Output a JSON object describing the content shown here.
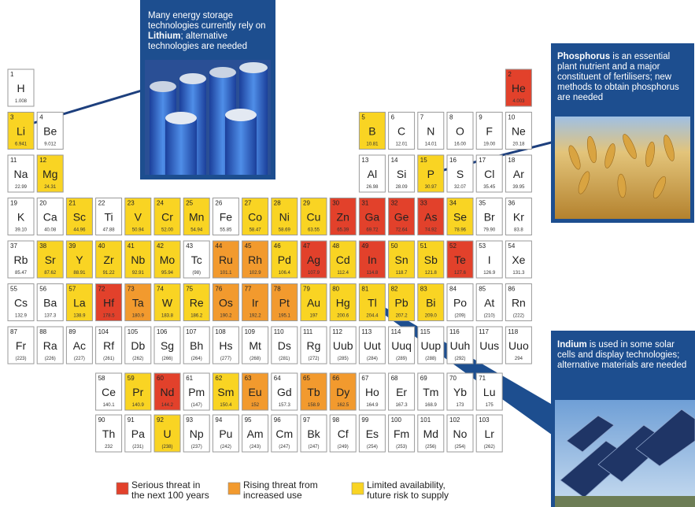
{
  "callouts": [
    {
      "parts": [
        {
          "text": "Many energy storage technologies currently rely on ",
          "bold": false
        },
        {
          "text": "Lithium",
          "bold": true
        },
        {
          "text": "; alternative technologies are needed",
          "bold": false
        }
      ]
    },
    {
      "parts": [
        {
          "text": "Phosphorus",
          "bold": true
        },
        {
          "text": " is an essential plant nutrient and a major constituent of fertilisers; new methods to obtain phosphorus are needed",
          "bold": false
        }
      ]
    },
    {
      "parts": [
        {
          "text": "Indium",
          "bold": true
        },
        {
          "text": " is used in some solar cells and display technologies; alternative materials are needed",
          "bold": false
        }
      ]
    }
  ],
  "legend": [
    {
      "lines": [
        "Serious threat in",
        "the next 100 years"
      ],
      "color": "#e2412b"
    },
    {
      "lines": [
        "Rising threat from",
        "increased use"
      ],
      "color": "#f29a2e"
    },
    {
      "lines": [
        "Limited availability,",
        "future risk to supply"
      ],
      "color": "#f9d423"
    }
  ],
  "elements": [
    {
      "number": 1,
      "symbol": "H",
      "mass": "1.008"
    },
    {
      "number": 2,
      "symbol": "He",
      "mass": "4.003",
      "color": "#e2412b"
    },
    {
      "number": 3,
      "symbol": "Li",
      "mass": "6.941",
      "color": "#f9d423"
    },
    {
      "number": 4,
      "symbol": "Be",
      "mass": "9.012"
    },
    {
      "number": 5,
      "symbol": "B",
      "mass": "10.81",
      "color": "#f9d423"
    },
    {
      "number": 6,
      "symbol": "C",
      "mass": "12.01"
    },
    {
      "number": 7,
      "symbol": "N",
      "mass": "14.01"
    },
    {
      "number": 8,
      "symbol": "O",
      "mass": "16.00"
    },
    {
      "number": 9,
      "symbol": "F",
      "mass": "19.00"
    },
    {
      "number": 10,
      "symbol": "Ne",
      "mass": "20.18"
    },
    {
      "number": 11,
      "symbol": "Na",
      "mass": "22.99"
    },
    {
      "number": 12,
      "symbol": "Mg",
      "mass": "24.31",
      "color": "#f9d423"
    },
    {
      "number": 13,
      "symbol": "Al",
      "mass": "26.98"
    },
    {
      "number": 14,
      "symbol": "Si",
      "mass": "28.09"
    },
    {
      "number": 15,
      "symbol": "P",
      "mass": "30.97",
      "color": "#f9d423"
    },
    {
      "number": 16,
      "symbol": "S",
      "mass": "32.07"
    },
    {
      "number": 17,
      "symbol": "Cl",
      "mass": "35.45"
    },
    {
      "number": 18,
      "symbol": "Ar",
      "mass": "39.95"
    },
    {
      "number": 19,
      "symbol": "K",
      "mass": "39.10"
    },
    {
      "number": 20,
      "symbol": "Ca",
      "mass": "40.08"
    },
    {
      "number": 21,
      "symbol": "Sc",
      "mass": "44.96",
      "color": "#f9d423"
    },
    {
      "number": 22,
      "symbol": "Ti",
      "mass": "47.88"
    },
    {
      "number": 23,
      "symbol": "V",
      "mass": "50.94",
      "color": "#f9d423"
    },
    {
      "number": 24,
      "symbol": "Cr",
      "mass": "52.00",
      "color": "#f9d423"
    },
    {
      "number": 25,
      "symbol": "Mn",
      "mass": "54.94",
      "color": "#f9d423"
    },
    {
      "number": 26,
      "symbol": "Fe",
      "mass": "55.85"
    },
    {
      "number": 27,
      "symbol": "Co",
      "mass": "58.47",
      "color": "#f9d423"
    },
    {
      "number": 28,
      "symbol": "Ni",
      "mass": "58.69",
      "color": "#f9d423"
    },
    {
      "number": 29,
      "symbol": "Cu",
      "mass": "63.55",
      "color": "#f9d423"
    },
    {
      "number": 30,
      "symbol": "Zn",
      "mass": "65.39",
      "color": "#e2412b"
    },
    {
      "number": 31,
      "symbol": "Ga",
      "mass": "69.72",
      "color": "#e2412b"
    },
    {
      "number": 32,
      "symbol": "Ge",
      "mass": "72.64",
      "color": "#e2412b"
    },
    {
      "number": 33,
      "symbol": "As",
      "mass": "74.92",
      "color": "#e2412b"
    },
    {
      "number": 34,
      "symbol": "Se",
      "mass": "78.96",
      "color": "#f9d423"
    },
    {
      "number": 35,
      "symbol": "Br",
      "mass": "79.90"
    },
    {
      "number": 36,
      "symbol": "Kr",
      "mass": "83.8"
    },
    {
      "number": 37,
      "symbol": "Rb",
      "mass": "85.47"
    },
    {
      "number": 38,
      "symbol": "Sr",
      "mass": "87.62",
      "color": "#f9d423"
    },
    {
      "number": 39,
      "symbol": "Y",
      "mass": "88.91",
      "color": "#f9d423"
    },
    {
      "number": 40,
      "symbol": "Zr",
      "mass": "91.22",
      "color": "#f9d423"
    },
    {
      "number": 41,
      "symbol": "Nb",
      "mass": "92.91",
      "color": "#f9d423"
    },
    {
      "number": 42,
      "symbol": "Mo",
      "mass": "95.94",
      "color": "#f9d423"
    },
    {
      "number": 43,
      "symbol": "Tc",
      "mass": "(98)"
    },
    {
      "number": 44,
      "symbol": "Ru",
      "mass": "101.1",
      "color": "#f29a2e"
    },
    {
      "number": 45,
      "symbol": "Rh",
      "mass": "102.9",
      "color": "#f29a2e"
    },
    {
      "number": 46,
      "symbol": "Pd",
      "mass": "106.4",
      "color": "#f9d423"
    },
    {
      "number": 47,
      "symbol": "Ag",
      "mass": "107.9",
      "color": "#e2412b"
    },
    {
      "number": 48,
      "symbol": "Cd",
      "mass": "112.4",
      "color": "#f9d423"
    },
    {
      "number": 49,
      "symbol": "In",
      "mass": "114.8",
      "color": "#e2412b"
    },
    {
      "number": 50,
      "symbol": "Sn",
      "mass": "118.7",
      "color": "#f9d423"
    },
    {
      "number": 51,
      "symbol": "Sb",
      "mass": "121.8",
      "color": "#f9d423"
    },
    {
      "number": 52,
      "symbol": "Te",
      "mass": "127.6",
      "color": "#e2412b"
    },
    {
      "number": 53,
      "symbol": "I",
      "mass": "126.9"
    },
    {
      "number": 54,
      "symbol": "Xe",
      "mass": "131.3"
    },
    {
      "number": 55,
      "symbol": "Cs",
      "mass": "132.9"
    },
    {
      "number": 56,
      "symbol": "Ba",
      "mass": "137.3"
    },
    {
      "number": 57,
      "symbol": "La",
      "mass": "138.9",
      "color": "#f9d423"
    },
    {
      "number": 58,
      "symbol": "Ce",
      "mass": "140.1"
    },
    {
      "number": 59,
      "symbol": "Pr",
      "mass": "140.9",
      "color": "#f9d423"
    },
    {
      "number": 60,
      "symbol": "Nd",
      "mass": "144.2",
      "color": "#e2412b"
    },
    {
      "number": 61,
      "symbol": "Pm",
      "mass": "(147)"
    },
    {
      "number": 62,
      "symbol": "Sm",
      "mass": "150.4",
      "color": "#f9d423"
    },
    {
      "number": 63,
      "symbol": "Eu",
      "mass": "152",
      "color": "#f29a2e"
    },
    {
      "number": 64,
      "symbol": "Gd",
      "mass": "157.3"
    },
    {
      "number": 65,
      "symbol": "Tb",
      "mass": "158.9",
      "color": "#f29a2e"
    },
    {
      "number": 66,
      "symbol": "Dy",
      "mass": "162.5",
      "color": "#f29a2e"
    },
    {
      "number": 67,
      "symbol": "Ho",
      "mass": "164.9"
    },
    {
      "number": 68,
      "symbol": "Er",
      "mass": "167.3"
    },
    {
      "number": 69,
      "symbol": "Tm",
      "mass": "168.9"
    },
    {
      "number": 70,
      "symbol": "Yb",
      "mass": "173"
    },
    {
      "number": 71,
      "symbol": "Lu",
      "mass": "175"
    },
    {
      "number": 72,
      "symbol": "Hf",
      "mass": "178.5",
      "color": "#e2412b"
    },
    {
      "number": 73,
      "symbol": "Ta",
      "mass": "180.9",
      "color": "#f29a2e"
    },
    {
      "number": 74,
      "symbol": "W",
      "mass": "183.8",
      "color": "#f9d423"
    },
    {
      "number": 75,
      "symbol": "Re",
      "mass": "186.2",
      "color": "#f9d423"
    },
    {
      "number": 76,
      "symbol": "Os",
      "mass": "190.2",
      "color": "#f29a2e"
    },
    {
      "number": 77,
      "symbol": "Ir",
      "mass": "192.2",
      "color": "#f29a2e"
    },
    {
      "number": 78,
      "symbol": "Pt",
      "mass": "195.1",
      "color": "#f29a2e"
    },
    {
      "number": 79,
      "symbol": "Au",
      "mass": "197",
      "color": "#f9d423"
    },
    {
      "number": 80,
      "symbol": "Hg",
      "mass": "200.6",
      "color": "#f9d423"
    },
    {
      "number": 81,
      "symbol": "Tl",
      "mass": "204.4",
      "color": "#f9d423"
    },
    {
      "number": 82,
      "symbol": "Pb",
      "mass": "207.2",
      "color": "#f9d423"
    },
    {
      "number": 83,
      "symbol": "Bi",
      "mass": "209.0",
      "color": "#f9d423"
    },
    {
      "number": 84,
      "symbol": "Po",
      "mass": "(209)"
    },
    {
      "number": 85,
      "symbol": "At",
      "mass": "(210)"
    },
    {
      "number": 86,
      "symbol": "Rn",
      "mass": "(222)"
    },
    {
      "number": 87,
      "symbol": "Fr",
      "mass": "(223)"
    },
    {
      "number": 88,
      "symbol": "Ra",
      "mass": "(226)"
    },
    {
      "number": 89,
      "symbol": "Ac",
      "mass": "(227)"
    },
    {
      "number": 90,
      "symbol": "Th",
      "mass": "232"
    },
    {
      "number": 91,
      "symbol": "Pa",
      "mass": "(231)"
    },
    {
      "number": 92,
      "symbol": "U",
      "mass": "(238)",
      "color": "#f9d423"
    },
    {
      "number": 93,
      "symbol": "Np",
      "mass": "(237)"
    },
    {
      "number": 94,
      "symbol": "Pu",
      "mass": "(242)"
    },
    {
      "number": 95,
      "symbol": "Am",
      "mass": "(243)"
    },
    {
      "number": 96,
      "symbol": "Cm",
      "mass": "(247)"
    },
    {
      "number": 97,
      "symbol": "Bk",
      "mass": "(247)"
    },
    {
      "number": 98,
      "symbol": "Cf",
      "mass": "(249)"
    },
    {
      "number": 99,
      "symbol": "Es",
      "mass": "(254)"
    },
    {
      "number": 100,
      "symbol": "Fm",
      "mass": "(253)"
    },
    {
      "number": 101,
      "symbol": "Md",
      "mass": "(256)"
    },
    {
      "number": 102,
      "symbol": "No",
      "mass": "(254)"
    },
    {
      "number": 103,
      "symbol": "Lr",
      "mass": "(262)"
    },
    {
      "number": 104,
      "symbol": "Rf",
      "mass": "(261)"
    },
    {
      "number": 105,
      "symbol": "Db",
      "mass": "(262)"
    },
    {
      "number": 106,
      "symbol": "Sg",
      "mass": "(266)"
    },
    {
      "number": 107,
      "symbol": "Bh",
      "mass": "(264)"
    },
    {
      "number": 108,
      "symbol": "Hs",
      "mass": "(277)"
    },
    {
      "number": 109,
      "symbol": "Mt",
      "mass": "(268)"
    },
    {
      "number": 110,
      "symbol": "Ds",
      "mass": "(281)"
    },
    {
      "number": 111,
      "symbol": "Rg",
      "mass": "(272)"
    },
    {
      "number": 112,
      "symbol": "Uub",
      "mass": "(285)"
    },
    {
      "number": 113,
      "symbol": "Uut",
      "mass": "(284)"
    },
    {
      "number": 114,
      "symbol": "Uuq",
      "mass": "(289)"
    },
    {
      "number": 115,
      "symbol": "Uup",
      "mass": "(288)"
    },
    {
      "number": 116,
      "symbol": "Uuh",
      "mass": "(292)"
    },
    {
      "number": 117,
      "symbol": "Uus"
    },
    {
      "number": 118,
      "symbol": "Uuo",
      "mass": "294"
    }
  ]
}
